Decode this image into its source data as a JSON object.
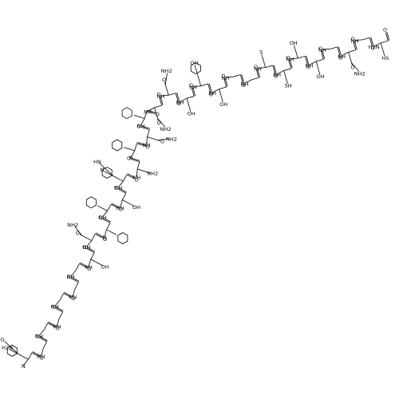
{
  "residues": [
    {
      "backbone": [
        "O",
        "N"
      ],
      "side": [
        "H2N",
        "O"
      ]
    },
    {
      "backbone": [
        "O",
        "NH"
      ],
      "side": []
    },
    {
      "backbone": [
        "O",
        "NH"
      ],
      "side": []
    },
    {
      "backbone": [
        "O",
        "NH"
      ],
      "side": []
    },
    {
      "backbone": [
        "O",
        "NH"
      ],
      "side": []
    },
    {
      "backbone": [
        "O",
        "NH"
      ],
      "side": []
    },
    {
      "backbone": [
        "O",
        "NH"
      ],
      "side": []
    },
    {
      "backbone": [
        "O",
        "NH"
      ],
      "side": [
        "OH"
      ]
    },
    {
      "backbone": [
        "O",
        "NH"
      ],
      "side": [
        "O",
        "NH2"
      ]
    },
    {
      "backbone": [
        "O",
        "N"
      ],
      "side": []
    },
    {
      "backbone": [
        "O",
        "NH"
      ],
      "side": []
    },
    {
      "backbone": [
        "O",
        "NH"
      ],
      "side": [
        "OH"
      ]
    },
    {
      "backbone": [
        "O",
        "NH"
      ],
      "side": [
        "N",
        "HN"
      ]
    },
    {
      "backbone": [
        "O",
        "NH"
      ],
      "side": [
        "NH2"
      ]
    },
    {
      "backbone": [
        "O",
        "N"
      ],
      "side": []
    },
    {
      "backbone": [
        "O",
        "NH"
      ],
      "side": [
        "O",
        "NH2"
      ]
    },
    {
      "backbone": [
        "O",
        "NH"
      ],
      "side": []
    },
    {
      "backbone": [
        "O",
        "NH"
      ],
      "side": [
        "O",
        "NH2"
      ]
    },
    {
      "backbone": [
        "O",
        "NH"
      ],
      "side": [
        "O",
        "NH2"
      ]
    },
    {
      "backbone": [
        "O",
        "NH"
      ],
      "side": [
        "OH"
      ]
    },
    {
      "backbone": [
        "O",
        "NH"
      ],
      "side": [
        "OH"
      ]
    },
    {
      "backbone": [
        "O",
        "NH"
      ],
      "side": [
        "OH"
      ]
    },
    {
      "backbone": [
        "O",
        "NH"
      ],
      "side": []
    },
    {
      "backbone": [
        "O",
        "NH"
      ],
      "side": []
    },
    {
      "backbone": [
        "O",
        "NH"
      ],
      "side": [
        "S"
      ]
    },
    {
      "backbone": [
        "O",
        "NH"
      ],
      "side": [
        "SH"
      ]
    },
    {
      "backbone": [
        "O",
        "NH"
      ],
      "side": [
        "OH"
      ]
    },
    {
      "backbone": [
        "O",
        "NH"
      ],
      "side": [
        "OH"
      ]
    },
    {
      "backbone": [
        "O",
        "NH"
      ],
      "side": []
    },
    {
      "backbone": [
        "O",
        "NH"
      ],
      "side": [
        "O",
        "NH2"
      ]
    },
    {
      "backbone": [
        "O",
        "NH"
      ],
      "side": []
    },
    {
      "backbone": [
        "O",
        "H2N"
      ],
      "side": [
        "HS"
      ]
    }
  ]
}
